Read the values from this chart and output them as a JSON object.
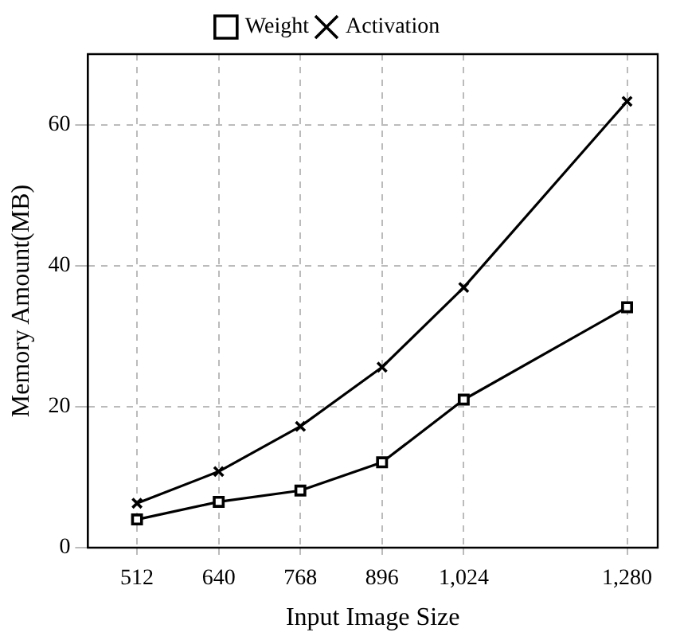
{
  "chart_data": {
    "type": "line",
    "xlabel": "Input Image Size",
    "ylabel": "Memory Amount(MB)",
    "x": [
      512,
      640,
      768,
      896,
      1024,
      1280
    ],
    "series": [
      {
        "name": "Weight",
        "color": "#000000",
        "marker": "square",
        "values": [
          4.0,
          6.5,
          8.1,
          12.1,
          21.0,
          34.1
        ]
      },
      {
        "name": "Activation",
        "color": "#000000",
        "marker": "cross",
        "values": [
          6.3,
          10.8,
          17.2,
          25.6,
          36.9,
          63.3
        ]
      }
    ],
    "xlim": [
      435,
      1328
    ],
    "ylim": [
      0,
      70
    ],
    "xticks": [
      512,
      640,
      768,
      896,
      {
        "value": 1024,
        "label": "1,024"
      },
      {
        "value": 1280,
        "label": "1,280"
      }
    ],
    "yticks": [
      0,
      20,
      40,
      60
    ],
    "grid": true,
    "legend": "top",
    "line_style": "solid"
  }
}
